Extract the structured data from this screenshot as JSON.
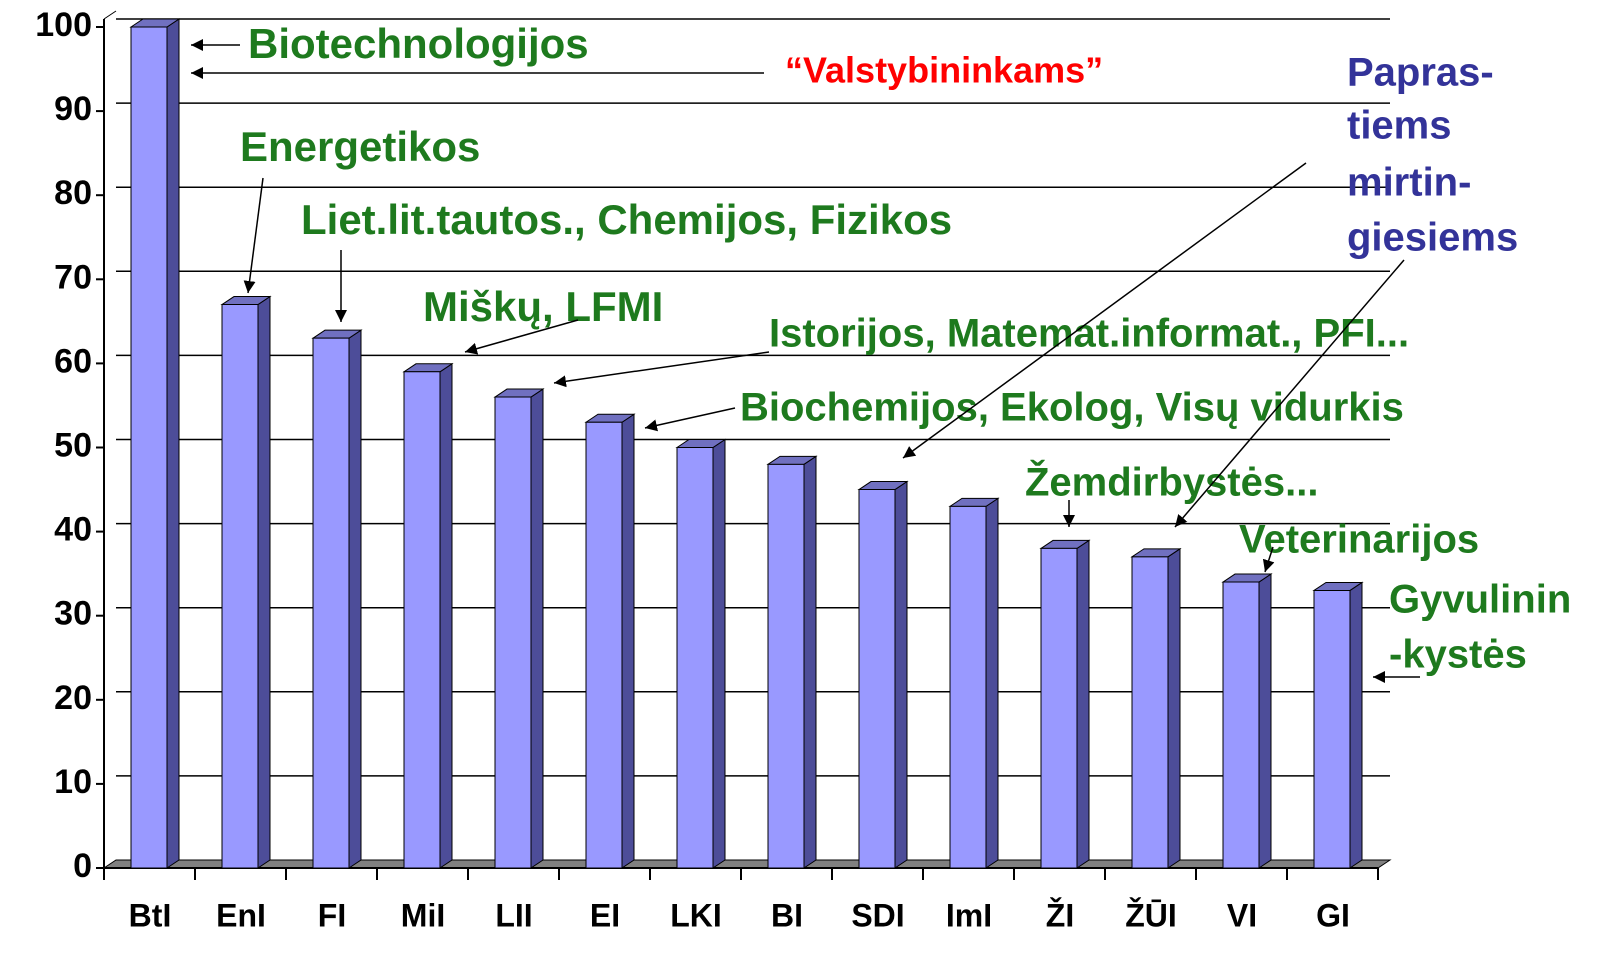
{
  "chart_data": {
    "type": "bar",
    "categories": [
      "BtI",
      "EnI",
      "FI",
      "MiI",
      "LII",
      "EI",
      "LKI",
      "BI",
      "SDI",
      "ImI",
      "ŽI",
      "ŽŪI",
      "VI",
      "GI"
    ],
    "values": [
      100,
      67,
      63,
      59,
      56,
      53,
      50,
      48,
      45,
      43,
      38,
      37,
      34,
      33
    ],
    "color": "#9999ff",
    "ylim": [
      0,
      100
    ],
    "yticks": [
      0,
      10,
      20,
      30,
      40,
      50,
      60,
      70,
      80,
      90,
      100
    ],
    "grid": true,
    "annotations": [
      {
        "lines": [
          "Biotechnologijos"
        ],
        "color": "#1e7a1e"
      },
      {
        "lines": [
          "“Valstybininkams”"
        ],
        "color": "#ff0000"
      },
      {
        "lines": [
          "Energetikos"
        ],
        "color": "#1e7a1e"
      },
      {
        "lines": [
          "Liet.lit.tautos., Chemijos, Fizikos"
        ],
        "color": "#1e7a1e"
      },
      {
        "lines": [
          "Miškų, LFMI"
        ],
        "color": "#1e7a1e"
      },
      {
        "lines": [
          "Istorijos, Matemat.informat., PFI..."
        ],
        "color": "#1e7a1e"
      },
      {
        "lines": [
          "Biochemijos, Ekolog, Visų vidurkis"
        ],
        "color": "#1e7a1e"
      },
      {
        "lines": [
          "Žemdirbystės..."
        ],
        "color": "#1e7a1e"
      },
      {
        "lines": [
          "Veterinarijos"
        ],
        "color": "#1e7a1e"
      },
      {
        "lines": [
          "Gyvulinin",
          "-kystės"
        ],
        "color": "#1e7a1e"
      },
      {
        "lines": [
          "Papras-",
          "tiems",
          "mirtin-",
          "giesiems"
        ],
        "color": "#333399"
      }
    ]
  }
}
